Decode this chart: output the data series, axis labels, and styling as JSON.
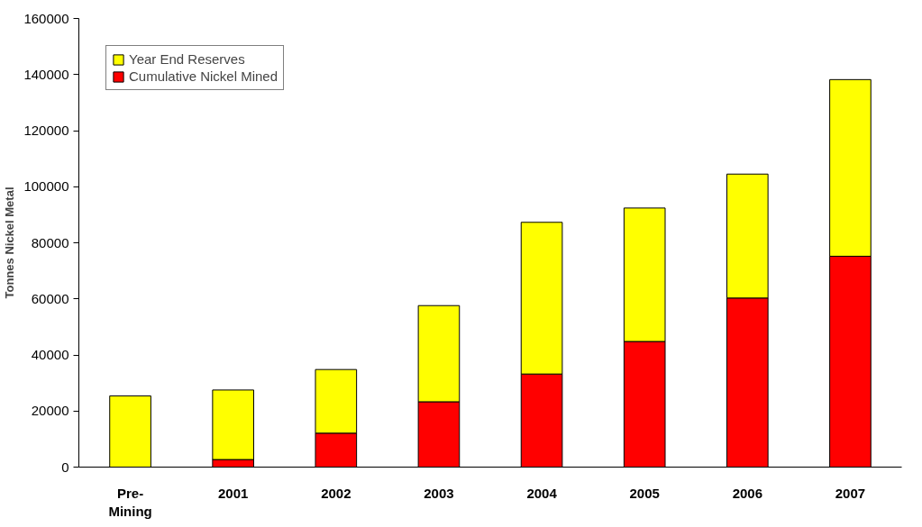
{
  "chart_data": {
    "type": "bar",
    "stacked": true,
    "ylabel": "Tonnes Nickel Metal",
    "categories": [
      "Pre-\nMining",
      "2001",
      "2002",
      "2003",
      "2004",
      "2005",
      "2006",
      "2007"
    ],
    "series": [
      {
        "name": "Cumulative Nickel Mined",
        "color": "#ff0000",
        "values": [
          0,
          2700,
          12100,
          23300,
          33200,
          44800,
          60300,
          75200
        ]
      },
      {
        "name": "Year End Reserves",
        "color": "#ffff00",
        "values": [
          25400,
          24800,
          22700,
          34300,
          54100,
          47600,
          44200,
          63000
        ]
      }
    ],
    "ylim": [
      0,
      160000
    ],
    "yticks": [
      0,
      20000,
      40000,
      60000,
      80000,
      100000,
      120000,
      140000,
      160000
    ],
    "grid": false,
    "legend": "top left"
  }
}
